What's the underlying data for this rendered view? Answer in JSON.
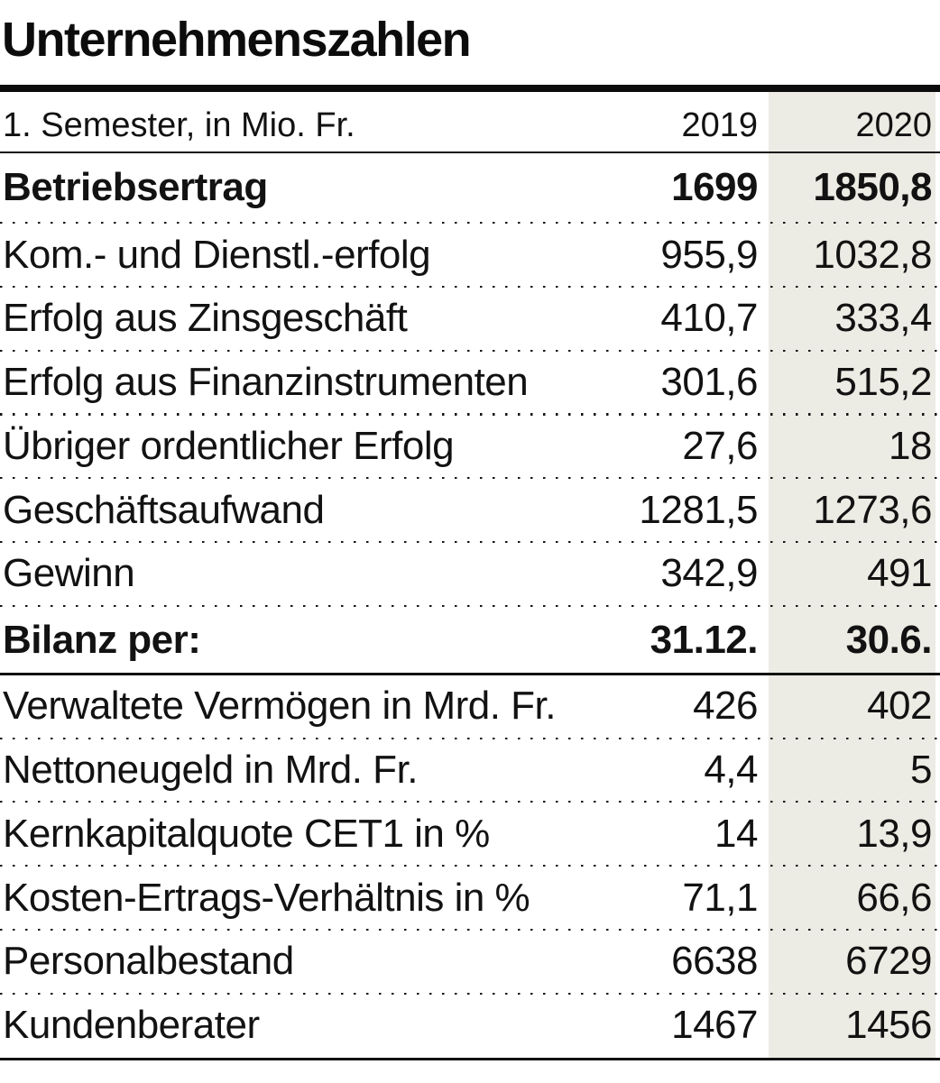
{
  "title": "Unternehmenszahlen",
  "colors": {
    "highlight_column": "#ecebe4",
    "text": "#121212",
    "rules": "#0c0c0c"
  },
  "chart_data": {
    "type": "table",
    "title": "Unternehmenszahlen",
    "header": {
      "label": "1. Semester, in Mio. Fr.",
      "columns": [
        "2019",
        "2020"
      ]
    },
    "layout": {
      "highlighted_column": "2020",
      "separators": "dotted between data rows; solid rule under header and under 'Bilanz per:' row; thick rule above table; 3px rule at bottom"
    },
    "rows": [
      {
        "label": "Betriebsertrag",
        "values": [
          "1699",
          "1850,8"
        ],
        "bold": true
      },
      {
        "label": "Kom.- und Dienstl.-erfolg",
        "values": [
          "955,9",
          "1032,8"
        ],
        "bold": false
      },
      {
        "label": "Erfolg aus Zinsgeschäft",
        "values": [
          "410,7",
          "333,4"
        ],
        "bold": false
      },
      {
        "label": "Erfolg aus Finanzinstrumenten",
        "values": [
          "301,6",
          "515,2"
        ],
        "bold": false
      },
      {
        "label": "Übriger ordentlicher Erfolg",
        "values": [
          "27,6",
          "18"
        ],
        "bold": false
      },
      {
        "label": "Geschäftsaufwand",
        "values": [
          "1281,5",
          "1273,6"
        ],
        "bold": false
      },
      {
        "label": "Gewinn",
        "values": [
          "342,9",
          "491"
        ],
        "bold": false
      },
      {
        "label": "Bilanz per:",
        "values": [
          "31.12.",
          "30.6."
        ],
        "bold": true
      },
      {
        "label": "Verwaltete Vermögen in Mrd. Fr.",
        "values": [
          "426",
          "402"
        ],
        "bold": false
      },
      {
        "label": "Nettoneugeld in Mrd. Fr.",
        "values": [
          "4,4",
          "5"
        ],
        "bold": false
      },
      {
        "label": "Kernkapitalquote CET1 in %",
        "values": [
          "14",
          "13,9"
        ],
        "bold": false
      },
      {
        "label": "Kosten-Ertrags-Verhältnis in %",
        "values": [
          "71,1",
          "66,6"
        ],
        "bold": false
      },
      {
        "label": "Personalbestand",
        "values": [
          "6638",
          "6729"
        ],
        "bold": false
      },
      {
        "label": "Kundenberater",
        "values": [
          "1467",
          "1456"
        ],
        "bold": false
      }
    ]
  }
}
